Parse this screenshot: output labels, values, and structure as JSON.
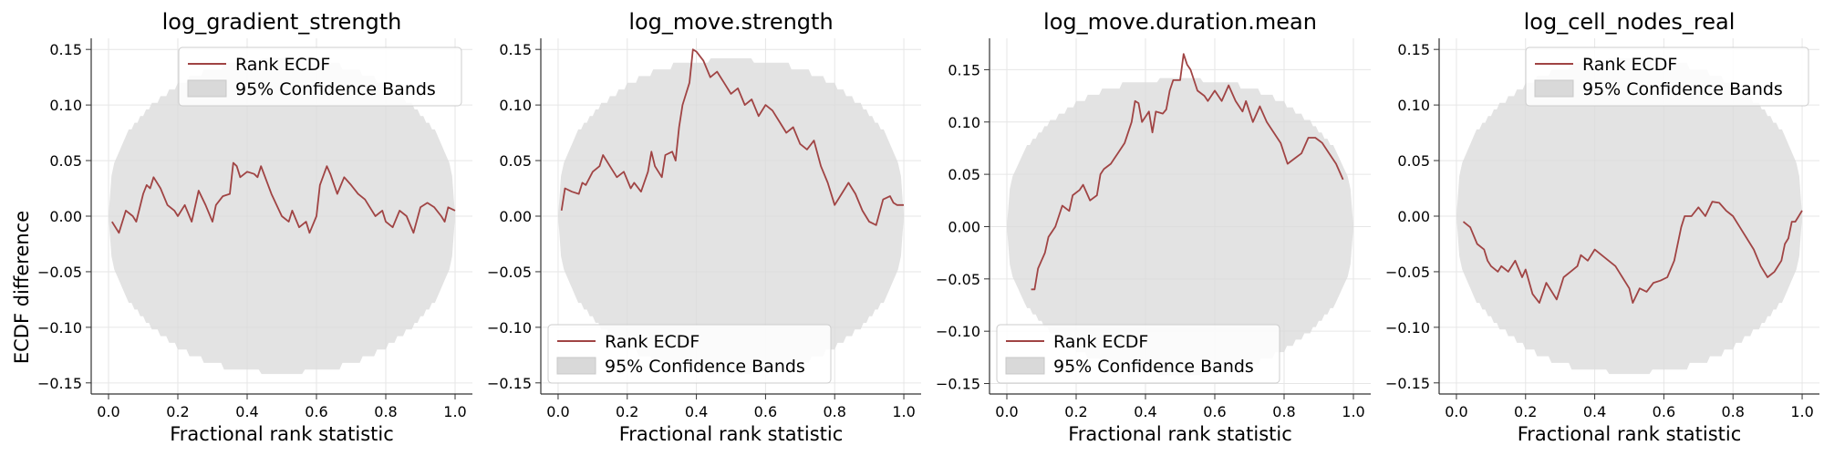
{
  "figure": {
    "ylabel": "ECDF difference"
  },
  "colors": {
    "line": "#a04444",
    "band": "#d9d9d9",
    "grid": "#e6e6e6",
    "axis": "#333333"
  },
  "chart_data": [
    {
      "type": "line",
      "title": "log_gradient_strength",
      "xlabel": "Fractional rank statistic",
      "ylabel": "ECDF difference",
      "xlim": [
        -0.05,
        1.05
      ],
      "ylim": [
        -0.16,
        0.16
      ],
      "xticks": [
        "0.0",
        "0.2",
        "0.4",
        "0.6",
        "0.8",
        "1.0"
      ],
      "yticks": [
        "0.15",
        "0.10",
        "0.05",
        "0.00",
        "−0.05",
        "−0.10",
        "−0.15"
      ],
      "legend_position": "top-right",
      "legend": [
        "Rank ECDF",
        "95% Confidence Bands"
      ],
      "band_max": 0.142,
      "series": [
        {
          "name": "Rank ECDF",
          "x": [
            0.01,
            0.03,
            0.05,
            0.07,
            0.08,
            0.1,
            0.11,
            0.12,
            0.13,
            0.15,
            0.17,
            0.19,
            0.2,
            0.22,
            0.24,
            0.26,
            0.28,
            0.3,
            0.31,
            0.33,
            0.35,
            0.36,
            0.37,
            0.38,
            0.4,
            0.42,
            0.43,
            0.44,
            0.47,
            0.5,
            0.52,
            0.53,
            0.55,
            0.57,
            0.58,
            0.6,
            0.61,
            0.63,
            0.64,
            0.66,
            0.68,
            0.7,
            0.72,
            0.74,
            0.75,
            0.77,
            0.79,
            0.8,
            0.82,
            0.84,
            0.86,
            0.88,
            0.9,
            0.92,
            0.94,
            0.96,
            0.97,
            0.98,
            1.0
          ],
          "y": [
            -0.005,
            -0.015,
            0.005,
            0.0,
            -0.005,
            0.02,
            0.028,
            0.025,
            0.035,
            0.025,
            0.01,
            0.005,
            0.0,
            0.01,
            -0.005,
            0.023,
            0.01,
            -0.005,
            0.01,
            0.018,
            0.02,
            0.048,
            0.045,
            0.035,
            0.04,
            0.038,
            0.035,
            0.045,
            0.02,
            0.0,
            -0.005,
            0.005,
            -0.01,
            -0.005,
            -0.015,
            0.0,
            0.028,
            0.045,
            0.038,
            0.02,
            0.035,
            0.028,
            0.02,
            0.015,
            0.01,
            0.0,
            0.005,
            -0.005,
            -0.01,
            0.005,
            0.0,
            -0.015,
            0.008,
            0.012,
            0.008,
            0.0,
            -0.005,
            0.008,
            0.005
          ]
        }
      ]
    },
    {
      "type": "line",
      "title": "log_move.strength",
      "xlabel": "Fractional rank statistic",
      "ylabel": "",
      "xlim": [
        -0.05,
        1.05
      ],
      "ylim": [
        -0.16,
        0.16
      ],
      "xticks": [
        "0.0",
        "0.2",
        "0.4",
        "0.6",
        "0.8",
        "1.0"
      ],
      "yticks": [
        "0.15",
        "0.10",
        "0.05",
        "0.00",
        "−0.05",
        "−0.10",
        "−0.15"
      ],
      "legend_position": "bottom-left",
      "legend": [
        "Rank ECDF",
        "95% Confidence Bands"
      ],
      "band_max": 0.142,
      "series": [
        {
          "name": "Rank ECDF",
          "x": [
            0.01,
            0.02,
            0.04,
            0.06,
            0.07,
            0.08,
            0.1,
            0.12,
            0.13,
            0.15,
            0.17,
            0.19,
            0.21,
            0.22,
            0.24,
            0.26,
            0.27,
            0.28,
            0.3,
            0.31,
            0.33,
            0.34,
            0.35,
            0.36,
            0.37,
            0.38,
            0.39,
            0.4,
            0.42,
            0.44,
            0.46,
            0.48,
            0.5,
            0.52,
            0.54,
            0.56,
            0.58,
            0.6,
            0.62,
            0.64,
            0.66,
            0.68,
            0.7,
            0.72,
            0.74,
            0.76,
            0.78,
            0.8,
            0.82,
            0.84,
            0.86,
            0.88,
            0.9,
            0.92,
            0.94,
            0.96,
            0.97,
            0.98,
            1.0
          ],
          "y": [
            0.005,
            0.025,
            0.022,
            0.02,
            0.03,
            0.028,
            0.04,
            0.045,
            0.055,
            0.045,
            0.035,
            0.04,
            0.025,
            0.03,
            0.022,
            0.04,
            0.058,
            0.045,
            0.035,
            0.055,
            0.058,
            0.05,
            0.08,
            0.1,
            0.11,
            0.12,
            0.15,
            0.148,
            0.14,
            0.125,
            0.13,
            0.12,
            0.11,
            0.115,
            0.1,
            0.105,
            0.09,
            0.1,
            0.095,
            0.085,
            0.075,
            0.08,
            0.065,
            0.06,
            0.068,
            0.045,
            0.03,
            0.01,
            0.02,
            0.03,
            0.02,
            0.005,
            -0.005,
            -0.008,
            0.015,
            0.018,
            0.012,
            0.01,
            0.01
          ]
        }
      ]
    },
    {
      "type": "line",
      "title": "log_move.duration.mean",
      "xlabel": "Fractional rank statistic",
      "ylabel": "",
      "xlim": [
        -0.05,
        1.05
      ],
      "ylim": [
        -0.16,
        0.18
      ],
      "xticks": [
        "0.0",
        "0.2",
        "0.4",
        "0.6",
        "0.8",
        "1.0"
      ],
      "yticks": [
        "0.15",
        "0.10",
        "0.05",
        "0.00",
        "−0.05",
        "−0.10",
        "−0.15"
      ],
      "legend_position": "bottom-left",
      "legend": [
        "Rank ECDF",
        "95% Confidence Bands"
      ],
      "band_max": 0.142,
      "series": [
        {
          "name": "Rank ECDF",
          "x": [
            0.07,
            0.08,
            0.09,
            0.11,
            0.12,
            0.13,
            0.14,
            0.15,
            0.16,
            0.18,
            0.19,
            0.21,
            0.22,
            0.24,
            0.26,
            0.27,
            0.28,
            0.3,
            0.31,
            0.32,
            0.34,
            0.36,
            0.37,
            0.38,
            0.39,
            0.41,
            0.42,
            0.43,
            0.45,
            0.46,
            0.47,
            0.48,
            0.5,
            0.51,
            0.52,
            0.53,
            0.55,
            0.57,
            0.58,
            0.6,
            0.62,
            0.64,
            0.66,
            0.68,
            0.69,
            0.71,
            0.73,
            0.75,
            0.77,
            0.79,
            0.81,
            0.83,
            0.85,
            0.87,
            0.89,
            0.91,
            0.93,
            0.95,
            0.97
          ],
          "y": [
            -0.06,
            -0.06,
            -0.04,
            -0.025,
            -0.01,
            -0.005,
            0.0,
            0.01,
            0.02,
            0.015,
            0.03,
            0.035,
            0.04,
            0.025,
            0.03,
            0.05,
            0.055,
            0.06,
            0.065,
            0.07,
            0.08,
            0.1,
            0.12,
            0.118,
            0.1,
            0.11,
            0.09,
            0.11,
            0.108,
            0.112,
            0.13,
            0.14,
            0.14,
            0.165,
            0.155,
            0.15,
            0.13,
            0.125,
            0.12,
            0.13,
            0.12,
            0.135,
            0.12,
            0.11,
            0.12,
            0.1,
            0.115,
            0.1,
            0.09,
            0.08,
            0.06,
            0.065,
            0.07,
            0.085,
            0.085,
            0.08,
            0.07,
            0.06,
            0.045
          ]
        }
      ]
    },
    {
      "type": "line",
      "title": "log_cell_nodes_real",
      "xlabel": "Fractional rank statistic",
      "ylabel": "",
      "xlim": [
        -0.05,
        1.05
      ],
      "ylim": [
        -0.16,
        0.16
      ],
      "xticks": [
        "0.0",
        "0.2",
        "0.4",
        "0.6",
        "0.8",
        "1.0"
      ],
      "yticks": [
        "0.15",
        "0.10",
        "0.05",
        "0.00",
        "−0.05",
        "−0.10",
        "−0.15"
      ],
      "legend_position": "top-right",
      "legend": [
        "Rank ECDF",
        "95% Confidence Bands"
      ],
      "band_max": 0.142,
      "series": [
        {
          "name": "Rank ECDF",
          "x": [
            0.02,
            0.04,
            0.06,
            0.08,
            0.09,
            0.1,
            0.12,
            0.13,
            0.15,
            0.17,
            0.19,
            0.2,
            0.22,
            0.24,
            0.26,
            0.27,
            0.29,
            0.31,
            0.33,
            0.35,
            0.36,
            0.38,
            0.4,
            0.42,
            0.44,
            0.46,
            0.48,
            0.5,
            0.51,
            0.53,
            0.55,
            0.57,
            0.59,
            0.61,
            0.63,
            0.65,
            0.66,
            0.68,
            0.7,
            0.72,
            0.74,
            0.76,
            0.78,
            0.8,
            0.82,
            0.84,
            0.86,
            0.88,
            0.9,
            0.92,
            0.94,
            0.95,
            0.96,
            0.97,
            0.98,
            0.99,
            1.0
          ],
          "y": [
            -0.005,
            -0.01,
            -0.025,
            -0.03,
            -0.04,
            -0.045,
            -0.05,
            -0.045,
            -0.05,
            -0.04,
            -0.055,
            -0.048,
            -0.07,
            -0.078,
            -0.06,
            -0.065,
            -0.075,
            -0.055,
            -0.05,
            -0.045,
            -0.035,
            -0.04,
            -0.03,
            -0.035,
            -0.04,
            -0.045,
            -0.055,
            -0.065,
            -0.078,
            -0.065,
            -0.068,
            -0.06,
            -0.058,
            -0.055,
            -0.04,
            -0.01,
            0.0,
            0.0,
            0.008,
            0.0,
            0.013,
            0.012,
            0.005,
            0.0,
            -0.01,
            -0.02,
            -0.03,
            -0.045,
            -0.055,
            -0.05,
            -0.04,
            -0.025,
            -0.02,
            -0.005,
            -0.005,
            0.0,
            0.005
          ]
        }
      ]
    }
  ]
}
